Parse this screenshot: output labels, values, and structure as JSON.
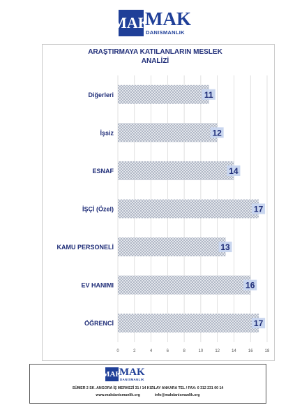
{
  "brand": {
    "logo_letters": "MAK",
    "name": "MAK",
    "subtitle": "DANISMANLIK",
    "color": "#1f3f98"
  },
  "footer": {
    "address": "SÜMER 2 SK. ANGORA İŞ MERKEZİ 31 / 14 KIZILAY  ANKARA TEL / FAX: 0 312 231 00 14",
    "website": "www.makdanismanlik.org",
    "email": "info@makdanismanlik.org"
  },
  "chart_data": {
    "type": "bar",
    "orientation": "horizontal",
    "title_line1": "ARAŞTIRMAYA KATILANLARIN  MESLEK",
    "title_line2": "ANALİZİ",
    "categories": [
      "Diğerleri",
      "İşsiz",
      "ESNAF",
      "İŞÇİ (Özel)",
      "KAMU PERSONELİ",
      "EV HANIMI",
      "ÖĞRENCİ"
    ],
    "values": [
      11,
      12,
      14,
      17,
      13,
      16,
      17
    ],
    "xlim": [
      0,
      18
    ],
    "xticks": [
      0,
      2,
      4,
      6,
      8,
      10,
      12,
      14,
      16,
      18
    ],
    "data_labels": true,
    "grid": true,
    "label_color": "#1f2d78",
    "label_box_color": "#c9d6ef"
  }
}
